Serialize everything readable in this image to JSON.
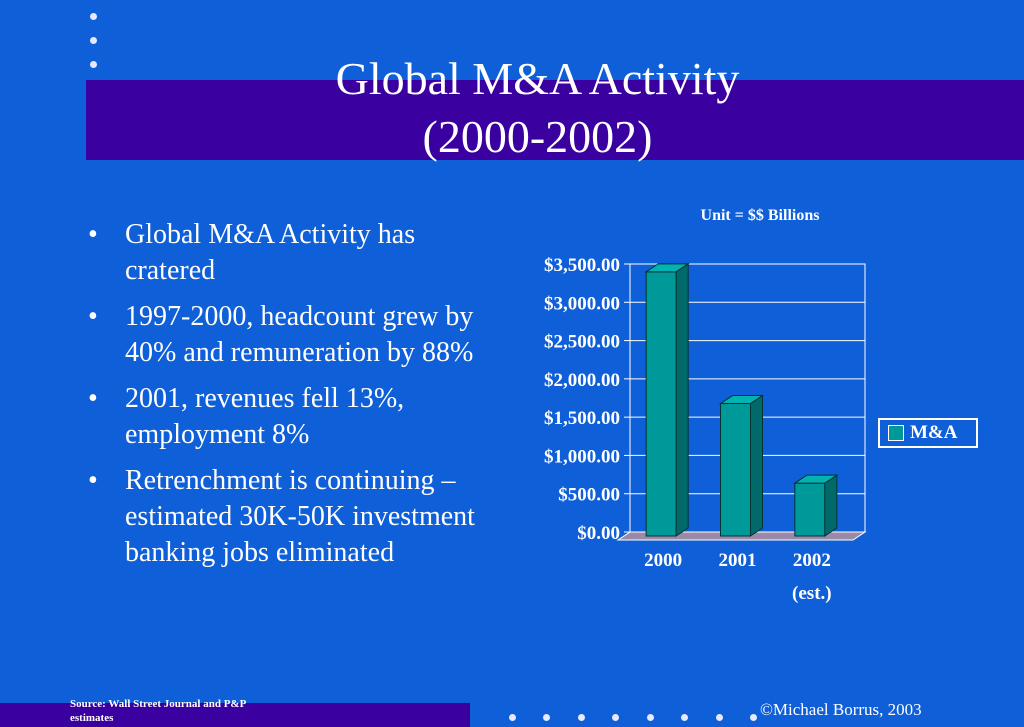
{
  "slide": {
    "title_line1": "Global M&A Activity",
    "title_line2": "(2000-2002)",
    "bullets": [
      "Global M&A Activity has cratered",
      "1997-2000, headcount grew by 40% and remuneration by 88%",
      "2001, revenues fell 13%, employment 8%",
      "Retrenchment is continuing – estimated 30K-50K investment banking jobs eliminated"
    ],
    "source": "Source: Wall Street Journal and P&P estimates",
    "copyright": "©Michael Borrus, 2003"
  },
  "colors": {
    "background": "#0e5fd8",
    "band": "#3a00a0",
    "bar_front": "#009999",
    "bar_side": "#006a6a",
    "bar_top": "#00b3b3"
  },
  "chart_data": {
    "type": "bar",
    "title": "Unit = $$ Billions",
    "categories": [
      "2000",
      "2001",
      "2002 (est.)"
    ],
    "category_lines": [
      [
        "2000"
      ],
      [
        "2001"
      ],
      [
        "2002",
        "(est.)"
      ]
    ],
    "series": [
      {
        "name": "M&A",
        "values": [
          3450,
          1730,
          690
        ]
      }
    ],
    "y_ticks": [
      "$0.00",
      "$500.00",
      "$1,000.00",
      "$1,500.00",
      "$2,000.00",
      "$2,500.00",
      "$3,000.00",
      "$3,500.00"
    ],
    "ylim": [
      0,
      3500
    ],
    "grid": true,
    "legend": "right",
    "three_d": true
  }
}
